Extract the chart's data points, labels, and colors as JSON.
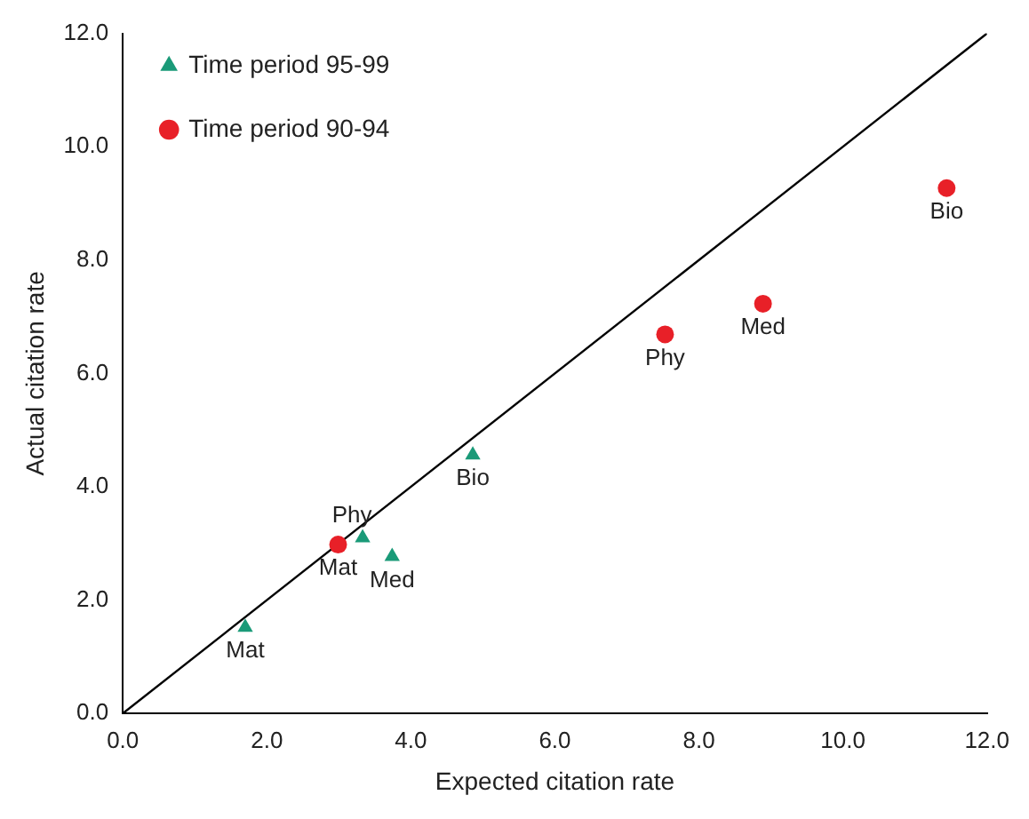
{
  "chart_data": {
    "type": "scatter",
    "xlabel": "Expected citation rate",
    "ylabel": "Actual citation rate",
    "xlim": [
      0,
      12
    ],
    "ylim": [
      0,
      12
    ],
    "xticks": [
      {
        "value": 0,
        "label": "0.0"
      },
      {
        "value": 2,
        "label": "2.0"
      },
      {
        "value": 4,
        "label": "4.0"
      },
      {
        "value": 6,
        "label": "6.0"
      },
      {
        "value": 8,
        "label": "8.0"
      },
      {
        "value": 10,
        "label": "10.0"
      },
      {
        "value": 12,
        "label": "12.0"
      }
    ],
    "yticks": [
      {
        "value": 0,
        "label": "0.0"
      },
      {
        "value": 2,
        "label": "2.0"
      },
      {
        "value": 4,
        "label": "4.0"
      },
      {
        "value": 6,
        "label": "6.0"
      },
      {
        "value": 8,
        "label": "8.0"
      },
      {
        "value": 10,
        "label": "10.0"
      },
      {
        "value": 12,
        "label": "12.0"
      }
    ],
    "grid": false,
    "legend": "top left",
    "series": [
      {
        "name": "Time period 95-99",
        "color": "#1a9a78",
        "marker": "triangle",
        "x": [
          1.7,
          3.33,
          3.74,
          4.86
        ],
        "values": [
          1.52,
          3.1,
          2.77,
          4.56
        ]
      },
      {
        "name": "Time period 90-94",
        "color": "#e82028",
        "marker": "circle",
        "x": [
          2.99,
          7.53,
          8.89,
          11.44
        ],
        "values": [
          2.98,
          6.69,
          7.23,
          9.27
        ]
      },
      {
        "type": "line",
        "color": "#000000",
        "marker": "none",
        "x": [
          0,
          12
        ],
        "values": [
          0,
          12
        ]
      }
    ],
    "annotations": [
      {
        "text": "Mat",
        "x": 1.7,
        "y": 1.52
      },
      {
        "text": "Phy",
        "x": 3.33,
        "y": 3.1
      },
      {
        "text": "Med",
        "x": 3.74,
        "y": 2.77
      },
      {
        "text": "Bio",
        "x": 4.86,
        "y": 4.56
      },
      {
        "text": "Mat",
        "x": 2.99,
        "y": 2.98
      },
      {
        "text": "Phy",
        "x": 7.53,
        "y": 6.69
      },
      {
        "text": "Med",
        "x": 8.89,
        "y": 7.23
      },
      {
        "text": "Bio",
        "x": 11.44,
        "y": 9.27
      }
    ]
  }
}
